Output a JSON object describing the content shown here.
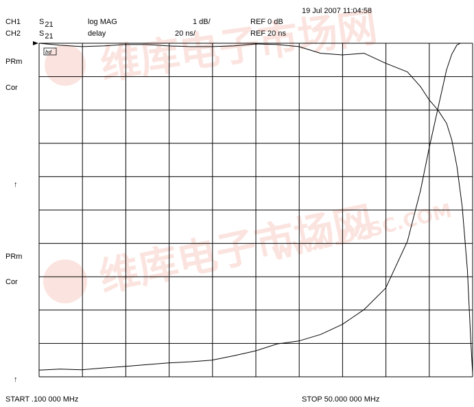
{
  "timestamp": "19 Jul 2007  11:04:58",
  "channels": [
    {
      "id": "CH1",
      "param": "S",
      "param_sub": "21",
      "format": "log MAG",
      "scale": "1 dB/",
      "ref": "REF 0 dB"
    },
    {
      "id": "CH2",
      "param": "S",
      "param_sub": "21",
      "format": "delay",
      "scale": "20 ns/",
      "ref": "REF 20 ns"
    }
  ],
  "side_labels": {
    "upper_a": "PRm",
    "upper_b": "Cor",
    "upper_arrow": "↑",
    "lower_a": "PRm",
    "lower_b": "Cor",
    "lower_arrow": "↑"
  },
  "marker_box": "bd",
  "start_label": "START  .100 000 MHz",
  "stop_label": "STOP   50.000 000 MHz",
  "watermark": {
    "cn": "维库电子市场网",
    "url": "WWW.DZSC.COM",
    "color": "#f2b3a3"
  },
  "chart_data": {
    "type": "line",
    "x_unit": "MHz",
    "xlim": [
      0.1,
      50.0
    ],
    "divisions": {
      "x": 10,
      "y": 10
    },
    "grid": true,
    "series": [
      {
        "name": "CH1 S21 log MAG",
        "unit": "dB",
        "ylim": [
          -10,
          0
        ],
        "x": [
          0.1,
          2.5,
          5.0,
          7.5,
          10.0,
          12.5,
          15.0,
          17.5,
          20.0,
          22.5,
          25.0,
          27.5,
          30.0,
          32.5,
          35.0,
          37.5,
          40.0,
          42.5,
          44.0,
          45.0,
          46.0,
          47.0,
          47.6,
          48.2,
          48.8,
          49.4,
          49.8,
          50.0
        ],
        "y": [
          0.0,
          -0.06,
          -0.1,
          -0.08,
          -0.04,
          -0.04,
          -0.08,
          -0.1,
          -0.1,
          -0.08,
          -0.02,
          -0.04,
          -0.1,
          -0.3,
          -0.35,
          -0.3,
          -0.6,
          -0.86,
          -1.3,
          -1.7,
          -2.0,
          -2.4,
          -2.9,
          -3.7,
          -4.9,
          -6.8,
          -9.0,
          -9.9
        ]
      },
      {
        "name": "CH2 S21 delay",
        "unit": "ns",
        "ylim": [
          20,
          220
        ],
        "x": [
          0.1,
          2.5,
          5.0,
          7.5,
          10.0,
          12.5,
          15.0,
          17.5,
          20.0,
          22.5,
          25.0,
          27.5,
          30.0,
          32.5,
          35.0,
          37.5,
          40.0,
          42.5,
          44.0,
          45.0,
          46.0,
          47.0,
          47.6,
          48.2,
          48.6,
          49.0,
          49.5,
          50.0
        ],
        "y": [
          24.0,
          24.6,
          24.2,
          25.3,
          26.2,
          27.3,
          28.3,
          29.0,
          30.0,
          32.6,
          35.5,
          39.7,
          41.5,
          45.4,
          51.4,
          60.3,
          73.2,
          101.3,
          131.7,
          157.3,
          180.7,
          204.1,
          213.4,
          219.0,
          220.0,
          220.0,
          220.0,
          220.0
        ]
      }
    ]
  }
}
